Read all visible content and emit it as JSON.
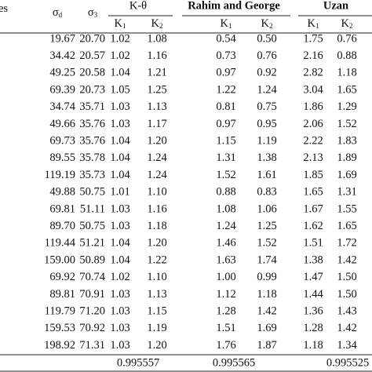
{
  "table": {
    "group_headers": [
      "K-θ",
      "Rahim and George",
      "Uzan"
    ],
    "column_headers": [
      {
        "base": "es"
      },
      {
        "base": "σ",
        "sub": "d"
      },
      {
        "base": "σ",
        "sub": "3"
      },
      {
        "base": "K",
        "sub": "1"
      },
      {
        "base": "K",
        "sub": "2"
      },
      {
        "base": "K",
        "sub": "1"
      },
      {
        "base": "K",
        "sub": "2"
      },
      {
        "base": "K",
        "sub": "1"
      },
      {
        "base": "K",
        "sub": "2"
      }
    ],
    "rows": [
      [
        "19.67",
        "20.70",
        "1.02",
        "1.08",
        "0.54",
        "0.50",
        "1.75",
        "0.76"
      ],
      [
        "34.42",
        "20.57",
        "1.02",
        "1.16",
        "0.73",
        "0.76",
        "2.16",
        "0.88"
      ],
      [
        "49.25",
        "20.58",
        "1.04",
        "1.21",
        "0.97",
        "0.92",
        "2.82",
        "1.18"
      ],
      [
        "69.39",
        "20.73",
        "1.05",
        "1.25",
        "1.22",
        "1.24",
        "3.04",
        "1.65"
      ],
      [
        "34.74",
        "35.71",
        "1.03",
        "1.13",
        "0.81",
        "0.75",
        "1.86",
        "1.29"
      ],
      [
        "49.66",
        "35.76",
        "1.03",
        "1.17",
        "0.97",
        "0.95",
        "2.06",
        "1.52"
      ],
      [
        "69.73",
        "35.76",
        "1.04",
        "1.20",
        "1.15",
        "1.19",
        "2.22",
        "1.83"
      ],
      [
        "89.55",
        "35.78",
        "1.04",
        "1.24",
        "1.31",
        "1.38",
        "2.13",
        "1.89"
      ],
      [
        "119.19",
        "35.73",
        "1.04",
        "1.24",
        "1.52",
        "1.61",
        "1.85",
        "1.69"
      ],
      [
        "49.88",
        "50.75",
        "1.01",
        "1.10",
        "0.88",
        "0.83",
        "1.65",
        "1.31"
      ],
      [
        "69.81",
        "51.11",
        "1.03",
        "1.16",
        "1.08",
        "1.06",
        "1.67",
        "1.55"
      ],
      [
        "89.70",
        "50.75",
        "1.03",
        "1.18",
        "1.24",
        "1.25",
        "1.62",
        "1.65"
      ],
      [
        "119.44",
        "51.21",
        "1.04",
        "1.20",
        "1.46",
        "1.52",
        "1.51",
        "1.72"
      ],
      [
        "159.00",
        "50.89",
        "1.04",
        "1.22",
        "1.63",
        "1.74",
        "1.38",
        "1.42"
      ],
      [
        "69.92",
        "70.74",
        "1.02",
        "1.10",
        "1.00",
        "0.99",
        "1.47",
        "1.50"
      ],
      [
        "89.81",
        "70.91",
        "1.03",
        "1.13",
        "1.12",
        "1.18",
        "1.44",
        "1.50"
      ],
      [
        "119.79",
        "71.20",
        "1.03",
        "1.15",
        "1.28",
        "1.42",
        "1.36",
        "1.43"
      ],
      [
        "159.53",
        "70.92",
        "1.03",
        "1.19",
        "1.51",
        "1.69",
        "1.28",
        "1.42"
      ],
      [
        "198.92",
        "71.31",
        "1.03",
        "1.20",
        "1.76",
        "1.87",
        "1.18",
        "1.34"
      ]
    ],
    "footer": [
      "0.995557",
      "0.995565",
      "0.995525"
    ]
  }
}
